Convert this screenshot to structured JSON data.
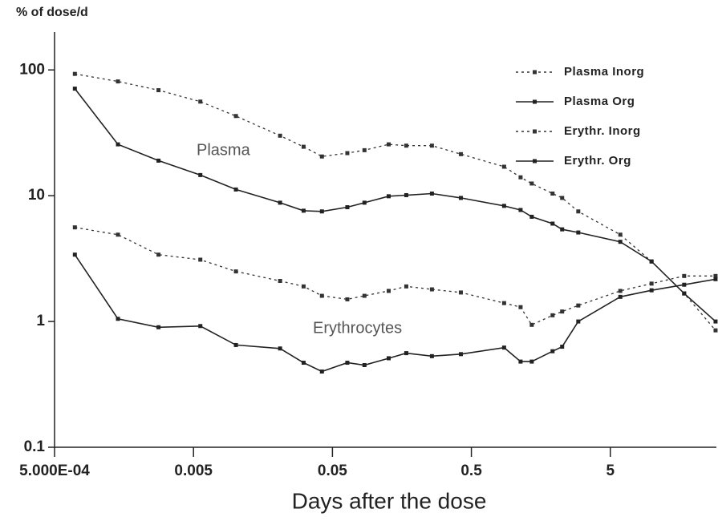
{
  "chart_data": {
    "type": "line",
    "ylabel": "% of dose/d",
    "xlabel": "Days after the dose",
    "annotations": [
      "Plasma",
      "Erythrocytes"
    ],
    "xscale": "log",
    "yscale": "log",
    "xlim": [
      0.0005,
      29
    ],
    "ylim": [
      0.1,
      200
    ],
    "xticks": [
      {
        "value": 0.0005,
        "label": "5.000E-04"
      },
      0.005,
      0.05,
      0.5,
      5
    ],
    "yticks": [
      0.1,
      1,
      10,
      100
    ],
    "legend": "upper right",
    "x": [
      0.0007,
      0.00143,
      0.0028,
      0.0056,
      0.0101,
      0.021,
      0.031,
      0.042,
      0.064,
      0.085,
      0.127,
      0.17,
      0.26,
      0.42,
      0.86,
      1.13,
      1.36,
      1.92,
      2.25,
      2.94,
      5.9,
      9.9,
      17,
      28.6
    ],
    "series": [
      {
        "name": "Plasma Inorg",
        "color": "#333333",
        "dash": "dotted",
        "values": [
          93,
          81,
          69,
          56,
          43,
          30,
          24.5,
          20.5,
          21.8,
          23,
          25.6,
          25,
          25,
          21.4,
          17,
          14,
          12.5,
          10.4,
          9.6,
          7.5,
          4.9,
          3,
          1.67,
          0.85
        ]
      },
      {
        "name": "Plasma Org",
        "color": "#222222",
        "dash": "solid",
        "values": [
          71,
          25.6,
          19,
          14.6,
          11.2,
          8.8,
          7.6,
          7.5,
          8.1,
          8.8,
          9.9,
          10.1,
          10.4,
          9.6,
          8.3,
          7.7,
          6.8,
          6,
          5.4,
          5.1,
          4.3,
          3,
          1.67,
          1.0
        ]
      },
      {
        "name": "Erythr. Inorg",
        "color": "#333333",
        "dash": "dotted",
        "values": [
          5.6,
          4.9,
          3.4,
          3.1,
          2.5,
          2.1,
          1.9,
          1.6,
          1.5,
          1.6,
          1.75,
          1.9,
          1.8,
          1.7,
          1.4,
          1.3,
          0.94,
          1.12,
          1.2,
          1.34,
          1.75,
          2.0,
          2.3,
          2.3
        ]
      },
      {
        "name": "Erythr. Org",
        "color": "#222222",
        "dash": "solid",
        "values": [
          3.4,
          1.05,
          0.9,
          0.92,
          0.65,
          0.61,
          0.47,
          0.4,
          0.47,
          0.45,
          0.51,
          0.56,
          0.53,
          0.55,
          0.62,
          0.48,
          0.48,
          0.58,
          0.63,
          1.0,
          1.57,
          1.77,
          1.96,
          2.17
        ]
      }
    ]
  }
}
